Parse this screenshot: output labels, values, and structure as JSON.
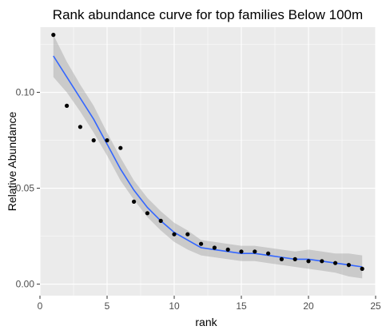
{
  "chart_data": {
    "type": "scatter",
    "title": "Rank abundance curve for top families Below 100m",
    "xlabel": "rank",
    "ylabel": "Relative Abundance",
    "xlim": [
      0,
      25
    ],
    "ylim": [
      -0.006,
      0.134
    ],
    "x_ticks": [
      0,
      5,
      10,
      15,
      20,
      25
    ],
    "x_tick_labels": [
      "0",
      "5",
      "10",
      "15",
      "20",
      "25"
    ],
    "y_ticks": [
      0.0,
      0.05,
      0.1
    ],
    "y_tick_labels": [
      "0.00",
      "0.05",
      "0.10"
    ],
    "grid": true,
    "points": {
      "x": [
        1,
        2,
        3,
        4,
        5,
        6,
        7,
        8,
        9,
        10,
        11,
        12,
        13,
        14,
        15,
        16,
        17,
        18,
        19,
        20,
        21,
        22,
        23,
        24
      ],
      "y": [
        0.13,
        0.093,
        0.082,
        0.075,
        0.075,
        0.071,
        0.043,
        0.037,
        0.033,
        0.026,
        0.026,
        0.021,
        0.019,
        0.018,
        0.017,
        0.017,
        0.016,
        0.013,
        0.013,
        0.012,
        0.012,
        0.011,
        0.01,
        0.008
      ],
      "color": "#000000"
    },
    "smooth": {
      "x": [
        1,
        2,
        3,
        4,
        5,
        6,
        7,
        8,
        9,
        10,
        11,
        12,
        13,
        14,
        15,
        16,
        17,
        18,
        19,
        20,
        21,
        22,
        23,
        24
      ],
      "y": [
        0.119,
        0.108,
        0.097,
        0.086,
        0.073,
        0.06,
        0.049,
        0.04,
        0.033,
        0.027,
        0.023,
        0.019,
        0.018,
        0.017,
        0.016,
        0.016,
        0.015,
        0.014,
        0.013,
        0.013,
        0.012,
        0.011,
        0.01,
        0.009
      ],
      "ci_lower": [
        0.108,
        0.1,
        0.09,
        0.079,
        0.067,
        0.054,
        0.044,
        0.035,
        0.028,
        0.022,
        0.018,
        0.015,
        0.014,
        0.013,
        0.012,
        0.012,
        0.011,
        0.01,
        0.009,
        0.008,
        0.007,
        0.006,
        0.004,
        0.003
      ],
      "ci_upper": [
        0.13,
        0.116,
        0.104,
        0.093,
        0.079,
        0.066,
        0.054,
        0.045,
        0.038,
        0.032,
        0.028,
        0.023,
        0.022,
        0.021,
        0.02,
        0.02,
        0.019,
        0.018,
        0.017,
        0.018,
        0.017,
        0.016,
        0.016,
        0.015
      ],
      "line_color": "#3366FF",
      "band_color": "#999999"
    },
    "panel_background": "#EBEBEB",
    "grid_color": "#FFFFFF"
  }
}
